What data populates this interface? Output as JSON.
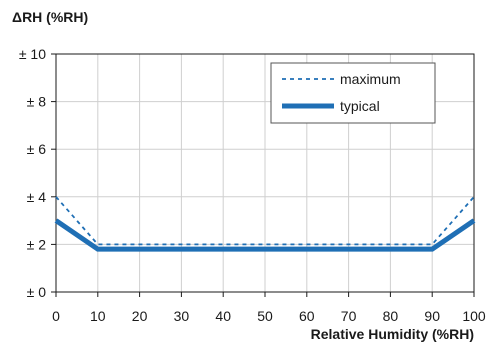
{
  "chart_data": {
    "type": "line",
    "ylabel": "ΔRH (%RH)",
    "xlabel": "Relative Humidity (%RH)",
    "xlim": [
      0,
      100
    ],
    "ylim": [
      0,
      10
    ],
    "x_ticks": [
      0,
      10,
      20,
      30,
      40,
      50,
      60,
      70,
      80,
      90,
      100
    ],
    "x_tick_labels": [
      "0",
      "10",
      "20",
      "30",
      "40",
      "50",
      "60",
      "70",
      "80",
      "90",
      "100"
    ],
    "y_ticks": [
      0,
      2,
      4,
      6,
      8,
      10
    ],
    "y_tick_labels": [
      "± 0",
      "± 2",
      "± 4",
      "± 6",
      "± 8",
      "± 10"
    ],
    "grid": true,
    "legend_position": "top-right",
    "series": [
      {
        "name": "maximum",
        "style": "dotted",
        "color": "#1f6fb5",
        "x": [
          0,
          10,
          90,
          100
        ],
        "y": [
          4,
          2,
          2,
          4
        ]
      },
      {
        "name": "typical",
        "style": "solid-thick",
        "color": "#1f6fb5",
        "x": [
          0,
          10,
          90,
          100
        ],
        "y": [
          3,
          1.8,
          1.8,
          3
        ]
      }
    ]
  }
}
